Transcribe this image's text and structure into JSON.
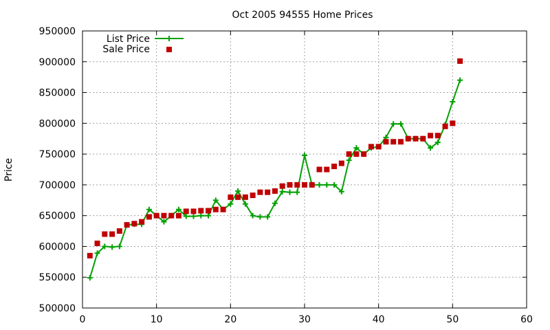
{
  "chart_data": {
    "type": "line",
    "title": "Oct 2005 94555 Home Prices",
    "xlabel": "",
    "ylabel": "Price",
    "xlim": [
      0,
      60
    ],
    "ylim": [
      500000,
      950000
    ],
    "xticks": [
      "0",
      "10",
      "20",
      "30",
      "40",
      "50",
      "60"
    ],
    "yticks": [
      "500000",
      "550000",
      "600000",
      "650000",
      "700000",
      "750000",
      "800000",
      "850000",
      "900000",
      "950000"
    ],
    "grid": true,
    "legend_position": "top-left",
    "series": [
      {
        "name": "List Price",
        "style": "line-with-plus-markers",
        "color": "#00a000",
        "x": [
          1,
          2,
          3,
          4,
          5,
          6,
          7,
          8,
          9,
          10,
          11,
          12,
          13,
          14,
          15,
          16,
          17,
          18,
          19,
          20,
          21,
          22,
          23,
          24,
          25,
          26,
          27,
          28,
          29,
          30,
          31,
          32,
          33,
          34,
          35,
          36,
          37,
          38,
          39,
          40,
          41,
          42,
          43,
          44,
          45,
          46,
          47,
          48,
          49,
          50,
          51
        ],
        "y": [
          549000,
          589000,
          600000,
          599000,
          600000,
          635000,
          636000,
          636000,
          660000,
          650000,
          640000,
          650000,
          660000,
          649000,
          649000,
          650000,
          650000,
          675000,
          660000,
          669000,
          690000,
          669000,
          650000,
          648000,
          648000,
          670000,
          689000,
          688000,
          688000,
          748000,
          700000,
          700000,
          700000,
          700000,
          689000,
          740000,
          760000,
          750000,
          760000,
          762000,
          777000,
          799000,
          799000,
          775000,
          775000,
          775000,
          760000,
          769000,
          798000,
          835000,
          870000
        ]
      },
      {
        "name": "Sale Price",
        "style": "square-markers",
        "color": "#c00000",
        "x": [
          1,
          2,
          3,
          4,
          5,
          6,
          7,
          8,
          9,
          10,
          11,
          12,
          13,
          14,
          15,
          16,
          17,
          18,
          19,
          20,
          21,
          22,
          23,
          24,
          25,
          26,
          27,
          28,
          29,
          30,
          31,
          32,
          33,
          34,
          35,
          36,
          37,
          38,
          39,
          40,
          41,
          42,
          43,
          44,
          45,
          46,
          47,
          48,
          49,
          50,
          51
        ],
        "y": [
          585000,
          605000,
          620000,
          620000,
          625000,
          635000,
          637000,
          640000,
          648000,
          650000,
          650000,
          650000,
          650000,
          657000,
          657000,
          658000,
          658000,
          660000,
          660000,
          680000,
          680000,
          680000,
          683000,
          688000,
          688000,
          690000,
          698000,
          700000,
          700000,
          700000,
          700000,
          725000,
          725000,
          730000,
          735000,
          750000,
          750000,
          750000,
          762000,
          762000,
          770000,
          770000,
          770000,
          775000,
          775000,
          775000,
          780000,
          780000,
          795000,
          800000,
          901000
        ]
      }
    ]
  }
}
